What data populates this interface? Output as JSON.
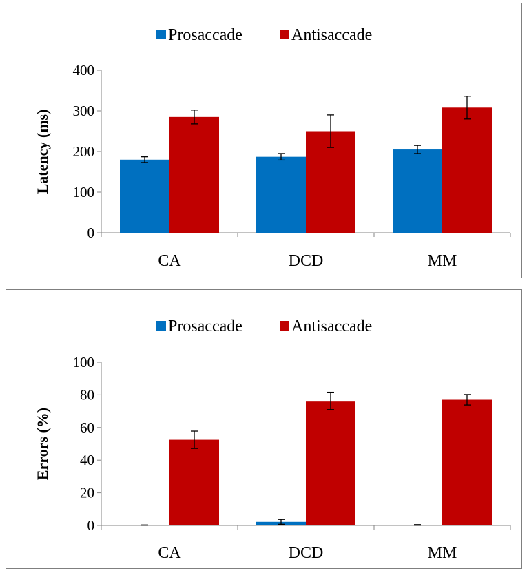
{
  "colors": {
    "prosaccade": "#0070c0",
    "antisaccade": "#c00000",
    "axis": "#868686",
    "error_bar": "#000000"
  },
  "chart_data": [
    {
      "type": "bar",
      "categories": [
        "CA",
        "DCD",
        "MM"
      ],
      "series": [
        {
          "name": "Prosaccade",
          "values": [
            180,
            187,
            205
          ],
          "errors": [
            7,
            8,
            10
          ]
        },
        {
          "name": "Antisaccade",
          "values": [
            285,
            250,
            308
          ],
          "errors": [
            17,
            40,
            28
          ]
        }
      ],
      "ylabel": "Latency (ms)",
      "xlabel": "",
      "ylim": [
        0,
        400
      ],
      "yticks": [
        0,
        100,
        200,
        300,
        400
      ],
      "legend": "top-center",
      "grid": false
    },
    {
      "type": "bar",
      "categories": [
        "CA",
        "DCD",
        "MM"
      ],
      "series": [
        {
          "name": "Prosaccade",
          "values": [
            0.2,
            2.2,
            0.3
          ],
          "errors": [
            0.1,
            1.5,
            0.2
          ]
        },
        {
          "name": "Antisaccade",
          "values": [
            52.5,
            76.3,
            77.0
          ],
          "errors": [
            5.3,
            5.3,
            3.2
          ]
        }
      ],
      "ylabel": "Errors (%)",
      "xlabel": "",
      "ylim": [
        0,
        100
      ],
      "yticks": [
        0,
        20,
        40,
        60,
        80,
        100
      ],
      "legend": "top-center",
      "grid": false
    }
  ]
}
